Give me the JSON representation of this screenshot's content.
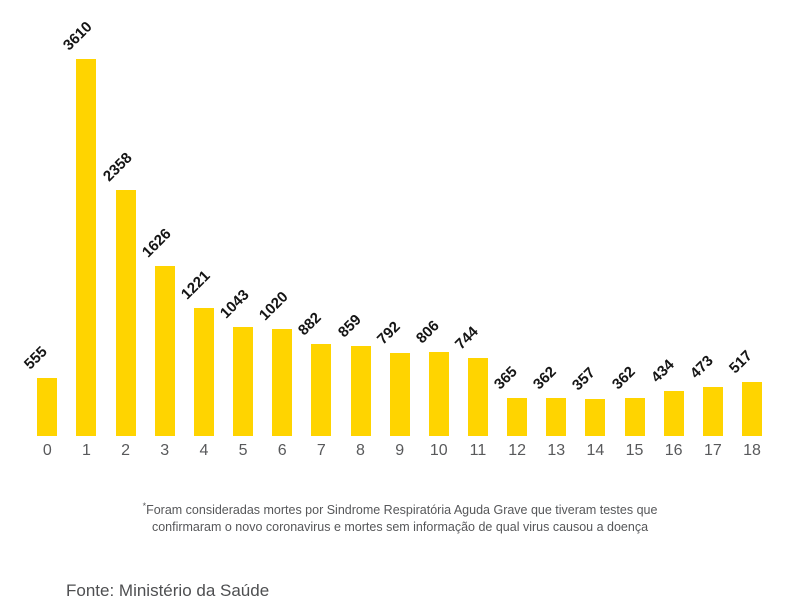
{
  "chart_data": {
    "type": "bar",
    "title": "",
    "xlabel": "",
    "ylabel": "",
    "categories": [
      "0",
      "1",
      "2",
      "3",
      "4",
      "5",
      "6",
      "7",
      "8",
      "9",
      "10",
      "11",
      "12",
      "13",
      "14",
      "15",
      "16",
      "17",
      "18"
    ],
    "values": [
      555,
      3610,
      2358,
      1626,
      1221,
      1043,
      1020,
      882,
      859,
      792,
      806,
      744,
      365,
      362,
      357,
      362,
      434,
      473,
      517
    ],
    "ylim": [
      0,
      3610
    ],
    "grid": "off",
    "legend": "none",
    "value_labels_rotation_deg": -45,
    "bar_color": "#FFD400",
    "value_label_color": "#141414",
    "axis_label_color": "#58595B"
  },
  "footnote": {
    "marker": "*",
    "line1": "Foram consideradas mortes por Sindrome Respiratória Aguda Grave que tiveram testes que",
    "line2": "confirmaram o novo coronavirus e mortes sem informação de qual virus causou a doença",
    "text_color": "#565759"
  },
  "source": {
    "label": "Fonte: Ministério da Saúde",
    "text_color": "#4E4F51"
  }
}
